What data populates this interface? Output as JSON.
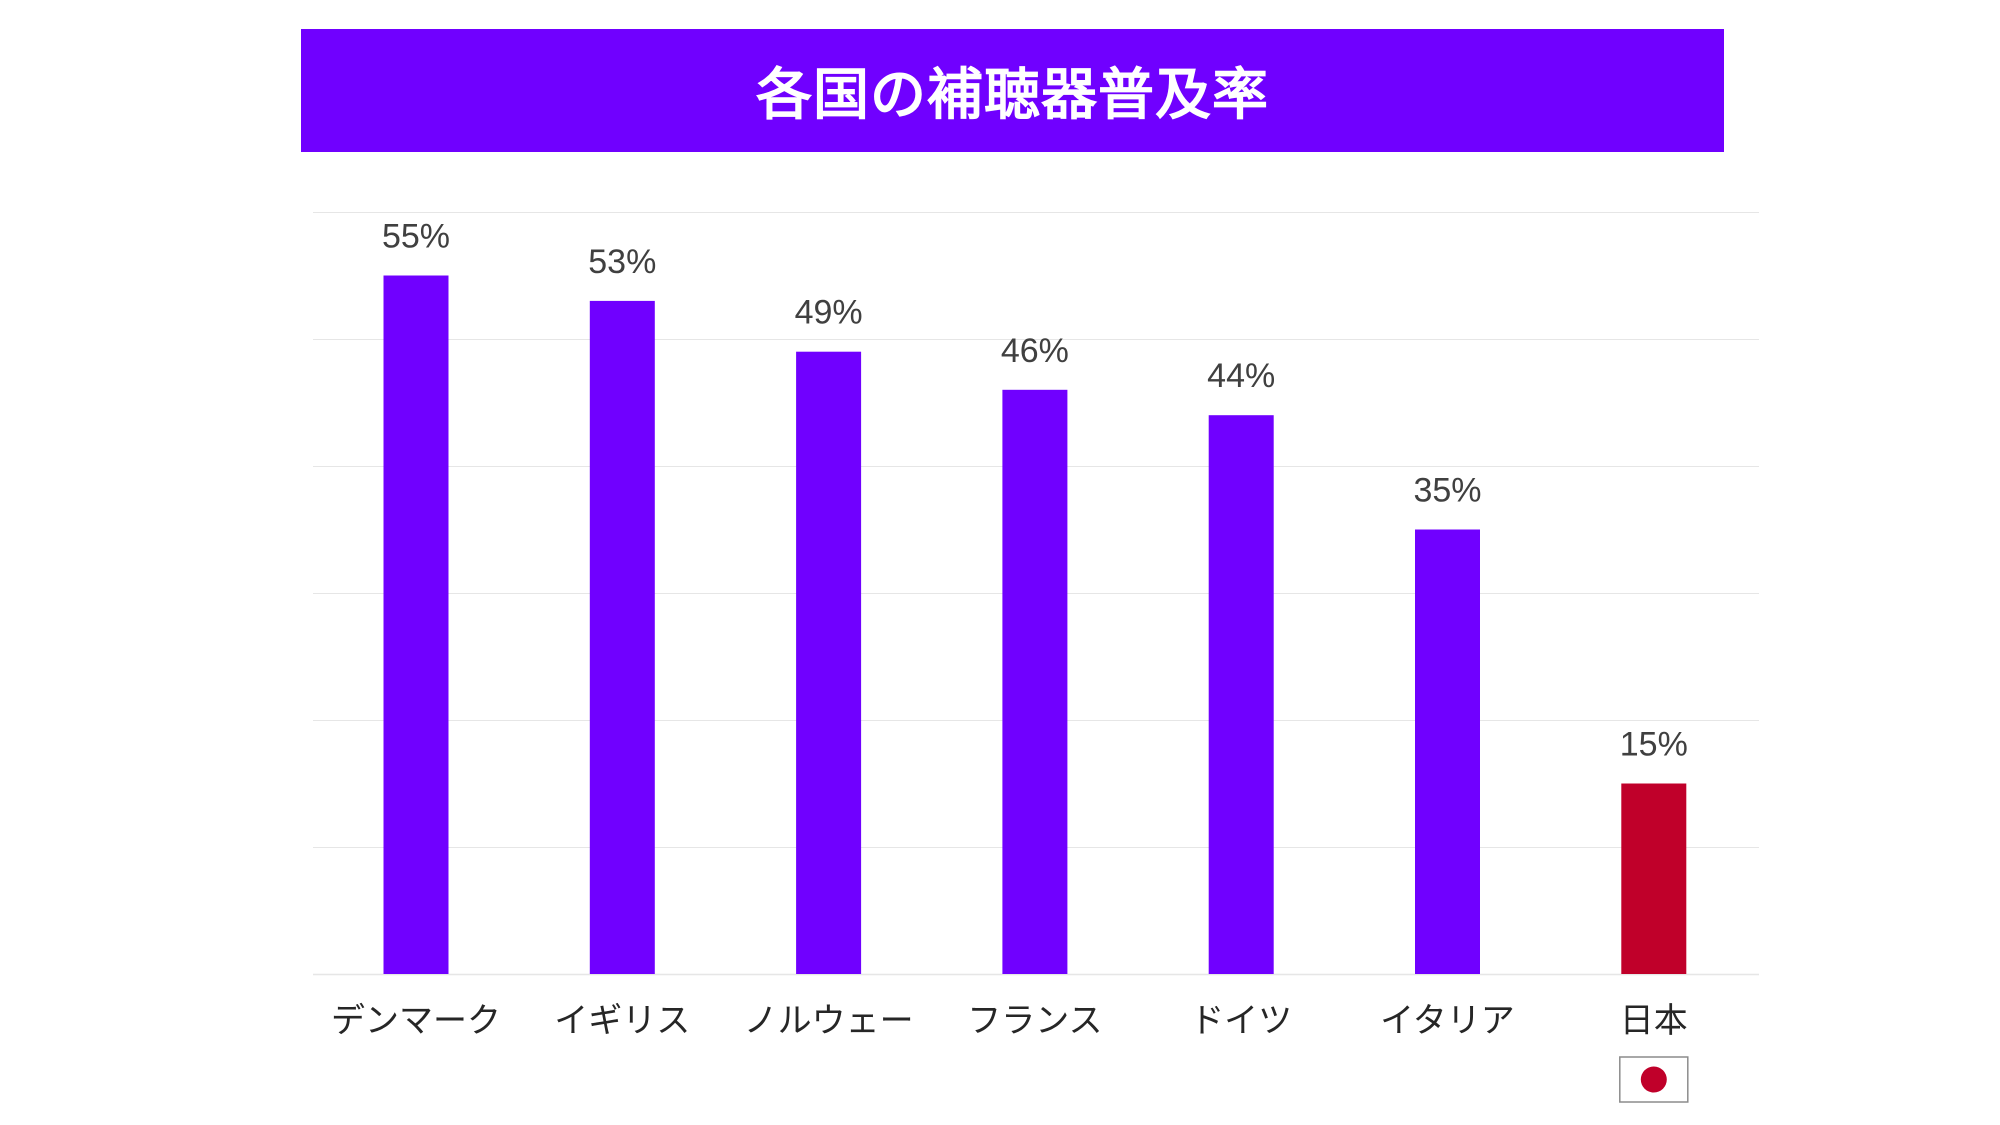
{
  "chart_data": {
    "type": "bar",
    "title": "各国の補聴器普及率",
    "categories": [
      "デンマーク",
      "イギリス",
      "ノルウェー",
      "フランス",
      "ドイツ",
      "イタリア",
      "日本"
    ],
    "values": [
      55,
      53,
      49,
      46,
      44,
      35,
      15
    ],
    "value_labels": [
      "55%",
      "53%",
      "49%",
      "46%",
      "44%",
      "35%",
      "15%"
    ],
    "unit": "%",
    "ylim": [
      0,
      60
    ],
    "grid": true,
    "xlabel": "",
    "ylabel": "",
    "colors": {
      "default_bar": "#7000ff",
      "highlight_bar": "#c0002a",
      "title_background": "#7000ff",
      "title_text": "#ffffff",
      "value_label": "#404040",
      "category_label": "#262626",
      "gridline": "#e6e6e6"
    },
    "highlight_category": "日本",
    "highlight_icon": "japan-flag-icon"
  }
}
